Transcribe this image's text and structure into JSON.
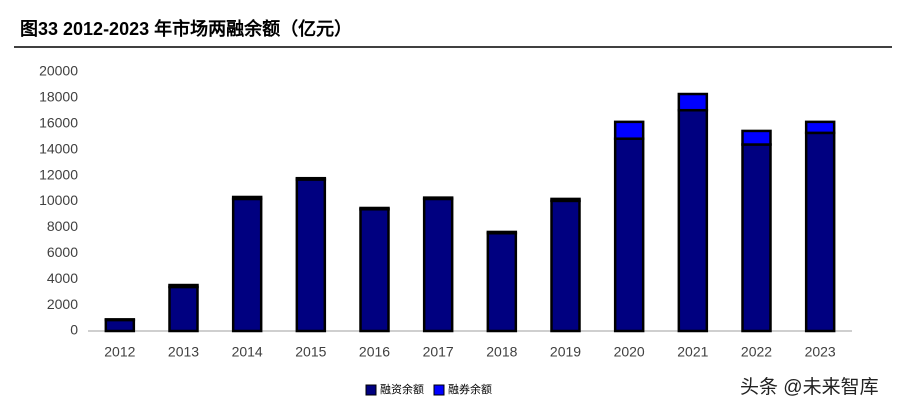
{
  "chart_data": {
    "type": "stacked-bar",
    "title": "图33 2012-2023 年市场两融余额（亿元）",
    "categories": [
      "2012",
      "2013",
      "2014",
      "2015",
      "2016",
      "2017",
      "2018",
      "2019",
      "2020",
      "2021",
      "2022",
      "2023"
    ],
    "series": [
      {
        "name": "融资余额",
        "color": "#000080",
        "values": [
          850,
          3400,
          10200,
          11700,
          9400,
          10200,
          7550,
          10050,
          14850,
          17050,
          14400,
          15300
        ]
      },
      {
        "name": "融券余额",
        "color": "#0000ff",
        "values": [
          50,
          150,
          150,
          100,
          100,
          100,
          100,
          150,
          1300,
          1250,
          1050,
          850
        ]
      }
    ],
    "ylim": [
      0,
      20000
    ],
    "yticks": [
      0,
      2000,
      4000,
      6000,
      8000,
      10000,
      12000,
      14000,
      16000,
      18000,
      20000
    ],
    "grid": false,
    "legend": "bottom",
    "watermark": "头条 @未来智库"
  }
}
